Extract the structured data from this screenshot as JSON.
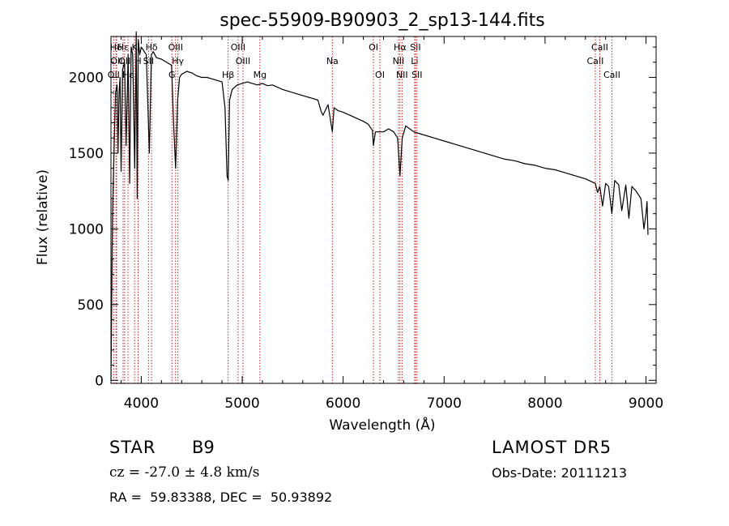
{
  "chart_data": {
    "type": "line",
    "title": "spec-55909-B90903_2_sp13-144.fits",
    "xlabel": "Wavelength (Å)",
    "ylabel": "Flux (relative)",
    "xlim": [
      3700,
      9100
    ],
    "ylim": [
      -20,
      2270
    ],
    "xticks": [
      4000,
      5000,
      6000,
      7000,
      8000,
      9000
    ],
    "yticks": [
      0,
      500,
      1000,
      1500,
      2000
    ],
    "x_tick_labels": [
      "4000",
      "5000",
      "6000",
      "7000",
      "8000",
      "9000"
    ],
    "y_tick_labels": [
      "0",
      "500",
      "1000",
      "1500",
      "2000"
    ],
    "grid": false,
    "legend": "none",
    "line_color": "#000000",
    "marker_color": "#cc2222",
    "series": [
      {
        "x": [
          3700,
          3715,
          3725,
          3735,
          3745,
          3760,
          3770,
          3780,
          3790,
          3800,
          3815,
          3835,
          3850,
          3870,
          3885,
          3900,
          3915,
          3935,
          3950,
          3960,
          3970,
          3985,
          4000,
          4020,
          4050,
          4080,
          4100,
          4120,
          4150,
          4200,
          4250,
          4300,
          4320,
          4340,
          4360,
          4380,
          4400,
          4450,
          4500,
          4550,
          4600,
          4650,
          4700,
          4750,
          4800,
          4830,
          4850,
          4861,
          4875,
          4900,
          4950,
          5000,
          5050,
          5100,
          5150,
          5200,
          5250,
          5300,
          5400,
          5500,
          5600,
          5700,
          5750,
          5780,
          5800,
          5850,
          5893,
          5910,
          5950,
          6000,
          6100,
          6200,
          6250,
          6290,
          6300,
          6320,
          6400,
          6450,
          6500,
          6540,
          6563,
          6585,
          6620,
          6700,
          6800,
          6900,
          7000,
          7100,
          7200,
          7300,
          7400,
          7500,
          7600,
          7700,
          7800,
          7900,
          8000,
          8100,
          8200,
          8300,
          8400,
          8498,
          8520,
          8542,
          8570,
          8600,
          8630,
          8662,
          8690,
          8730,
          8760,
          8800,
          8830,
          8860,
          8900,
          8950,
          8980,
          9000,
          9010,
          9020
        ],
        "y": [
          0,
          1100,
          1350,
          1650,
          1900,
          1950,
          1500,
          1900,
          2000,
          1380,
          2050,
          2100,
          1550,
          2150,
          1300,
          2200,
          2150,
          1400,
          2300,
          1200,
          2250,
          2150,
          2200,
          2180,
          2150,
          1500,
          2150,
          2170,
          2130,
          2120,
          2100,
          2080,
          1700,
          1400,
          1850,
          2000,
          2020,
          2040,
          2030,
          2010,
          2000,
          2000,
          1990,
          1980,
          1970,
          1800,
          1350,
          1320,
          1850,
          1920,
          1950,
          1960,
          1970,
          1960,
          1950,
          1960,
          1945,
          1950,
          1920,
          1900,
          1880,
          1860,
          1850,
          1780,
          1750,
          1820,
          1640,
          1800,
          1780,
          1770,
          1740,
          1710,
          1690,
          1650,
          1550,
          1640,
          1640,
          1660,
          1640,
          1600,
          1350,
          1600,
          1680,
          1640,
          1620,
          1600,
          1580,
          1560,
          1540,
          1520,
          1500,
          1480,
          1460,
          1450,
          1430,
          1420,
          1400,
          1390,
          1370,
          1350,
          1330,
          1300,
          1240,
          1280,
          1150,
          1300,
          1280,
          1100,
          1320,
          1290,
          1120,
          1290,
          1070,
          1280,
          1250,
          1200,
          1000,
          1100,
          1180,
          960
        ]
      }
    ],
    "line_markers": [
      {
        "label": "OII",
        "x": 3727,
        "row": 3
      },
      {
        "label": "Hδ",
        "x": 3750,
        "row": 1
      },
      {
        "label": "OII",
        "x": 3756,
        "row": 2
      },
      {
        "label": "Hε",
        "x": 3820,
        "row": 1
      },
      {
        "label": "OII",
        "x": 3835,
        "row": 2
      },
      {
        "label": "Hε",
        "x": 3869,
        "row": 3
      },
      {
        "label": "K",
        "x": 3934,
        "row": 1
      },
      {
        "label": "H",
        "x": 3969,
        "row": 2
      },
      {
        "label": "Hδ",
        "x": 4102,
        "row": 1
      },
      {
        "label": "SII",
        "x": 4072,
        "row": 2
      },
      {
        "label": "G",
        "x": 4304,
        "row": 3
      },
      {
        "label": "OIII",
        "x": 4340,
        "row": 1
      },
      {
        "label": "Hγ",
        "x": 4363,
        "row": 2
      },
      {
        "label": "Hβ",
        "x": 4861,
        "row": 3
      },
      {
        "label": "OIII",
        "x": 4959,
        "row": 1
      },
      {
        "label": "OIII",
        "x": 5007,
        "row": 2
      },
      {
        "label": "Mg",
        "x": 5175,
        "row": 3
      },
      {
        "label": "Na",
        "x": 5893,
        "row": 2
      },
      {
        "label": "OI",
        "x": 6300,
        "row": 1
      },
      {
        "label": "OI",
        "x": 6364,
        "row": 3
      },
      {
        "label": "Hα",
        "x": 6563,
        "row": 1
      },
      {
        "label": "NII",
        "x": 6548,
        "row": 2
      },
      {
        "label": "NII",
        "x": 6583,
        "row": 3
      },
      {
        "label": "SII",
        "x": 6716,
        "row": 1
      },
      {
        "label": "Li",
        "x": 6708,
        "row": 2
      },
      {
        "label": "SII",
        "x": 6731,
        "row": 3
      },
      {
        "label": "CaII",
        "x": 8498,
        "row": 2
      },
      {
        "label": "CaII",
        "x": 8542,
        "row": 1
      },
      {
        "label": "CaII",
        "x": 8662,
        "row": 3
      }
    ]
  },
  "info": {
    "object_type": "STAR",
    "subclass": "B9",
    "survey": "LAMOST DR5",
    "redshift_text": "cz = -27.0 ± 4.8 km/s",
    "obs_date": "Obs-Date: 20111213",
    "coords": "RA =  59.83388, DEC =  50.93892"
  }
}
